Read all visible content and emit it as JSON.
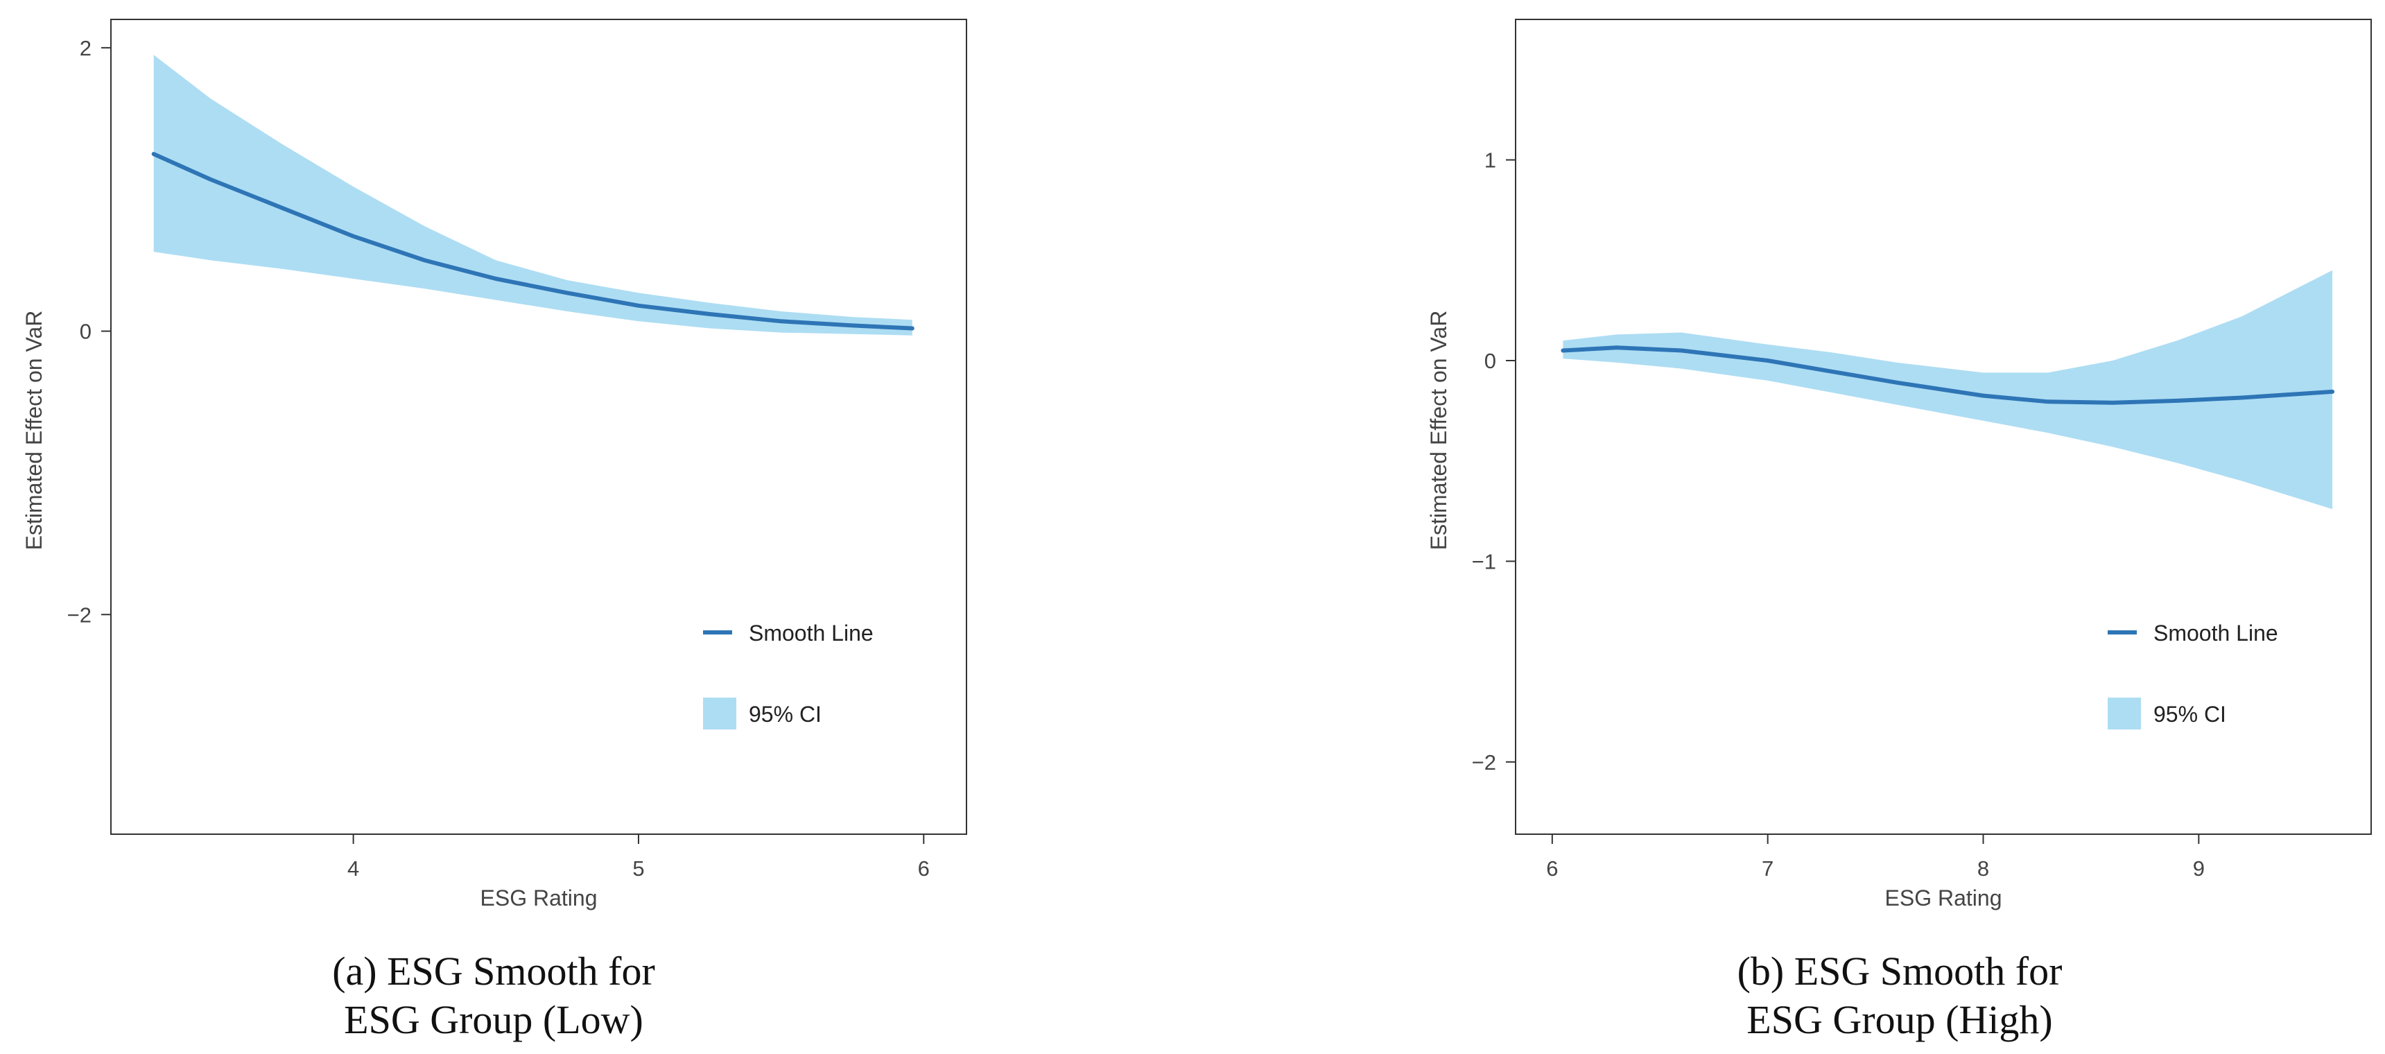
{
  "chart_data": [
    {
      "type": "line",
      "panel": "a",
      "caption_line1": "(a) ESG Smooth for",
      "caption_line2": "ESG Group (Low)",
      "xlabel": "ESG Rating",
      "ylabel": "Estimated Effect on VaR",
      "xlim": [
        3.15,
        6.15
      ],
      "ylim": [
        -3.55,
        2.2
      ],
      "xticks": [
        4,
        5,
        6
      ],
      "xtick_labels": [
        "4",
        "5",
        "6"
      ],
      "yticks": [
        2,
        0,
        -2
      ],
      "ytick_labels": [
        "2",
        "0",
        "−2"
      ],
      "legend": {
        "placement": "bottom-right",
        "line_label": "Smooth Line",
        "band_label": "95% CI"
      },
      "colors": {
        "line": "#2E75B6",
        "band": "#ADDDF3",
        "frame": "#333333"
      },
      "series": [
        {
          "name": "Smooth Line",
          "x": [
            3.3,
            3.5,
            3.75,
            4.0,
            4.25,
            4.5,
            4.75,
            5.0,
            5.25,
            5.5,
            5.75,
            5.96
          ],
          "y": [
            1.25,
            1.07,
            0.87,
            0.67,
            0.5,
            0.37,
            0.27,
            0.18,
            0.12,
            0.07,
            0.04,
            0.02
          ]
        }
      ],
      "band": {
        "name": "95% CI",
        "x": [
          3.3,
          3.5,
          3.75,
          4.0,
          4.25,
          4.5,
          4.75,
          5.0,
          5.25,
          5.5,
          5.75,
          5.96
        ],
        "lower": [
          0.56,
          0.5,
          0.44,
          0.37,
          0.3,
          0.22,
          0.14,
          0.07,
          0.02,
          -0.01,
          -0.02,
          -0.03
        ],
        "upper": [
          1.95,
          1.64,
          1.32,
          1.02,
          0.74,
          0.5,
          0.36,
          0.27,
          0.2,
          0.14,
          0.1,
          0.08
        ]
      }
    },
    {
      "type": "line",
      "panel": "b",
      "caption_line1": "(b) ESG Smooth for",
      "caption_line2": "ESG Group (High)",
      "xlabel": "ESG Rating",
      "ylabel": "Estimated Effect on VaR",
      "xlim": [
        5.83,
        9.8
      ],
      "ylim": [
        -2.36,
        1.7
      ],
      "xticks": [
        6,
        7,
        8,
        9
      ],
      "xtick_labels": [
        "6",
        "7",
        "8",
        "9"
      ],
      "yticks": [
        1,
        0,
        -1,
        -2
      ],
      "ytick_labels": [
        "1",
        "0",
        "−1",
        "−2"
      ],
      "legend": {
        "placement": "bottom-right",
        "line_label": "Smooth Line",
        "band_label": "95% CI"
      },
      "colors": {
        "line": "#2E75B6",
        "band": "#ADDDF3",
        "frame": "#333333"
      },
      "series": [
        {
          "name": "Smooth Line",
          "x": [
            6.05,
            6.3,
            6.6,
            7.0,
            7.3,
            7.6,
            8.0,
            8.3,
            8.6,
            8.9,
            9.2,
            9.62
          ],
          "y": [
            0.05,
            0.065,
            0.05,
            0.0,
            -0.055,
            -0.11,
            -0.175,
            -0.205,
            -0.21,
            -0.2,
            -0.185,
            -0.155
          ]
        }
      ],
      "band": {
        "name": "95% CI",
        "x": [
          6.05,
          6.3,
          6.6,
          7.0,
          7.3,
          7.6,
          8.0,
          8.3,
          8.6,
          8.9,
          9.2,
          9.62
        ],
        "lower": [
          0.01,
          -0.01,
          -0.04,
          -0.1,
          -0.16,
          -0.22,
          -0.3,
          -0.36,
          -0.43,
          -0.51,
          -0.6,
          -0.74
        ],
        "upper": [
          0.1,
          0.13,
          0.14,
          0.08,
          0.04,
          -0.01,
          -0.06,
          -0.06,
          0.0,
          0.1,
          0.22,
          0.45
        ]
      }
    }
  ]
}
